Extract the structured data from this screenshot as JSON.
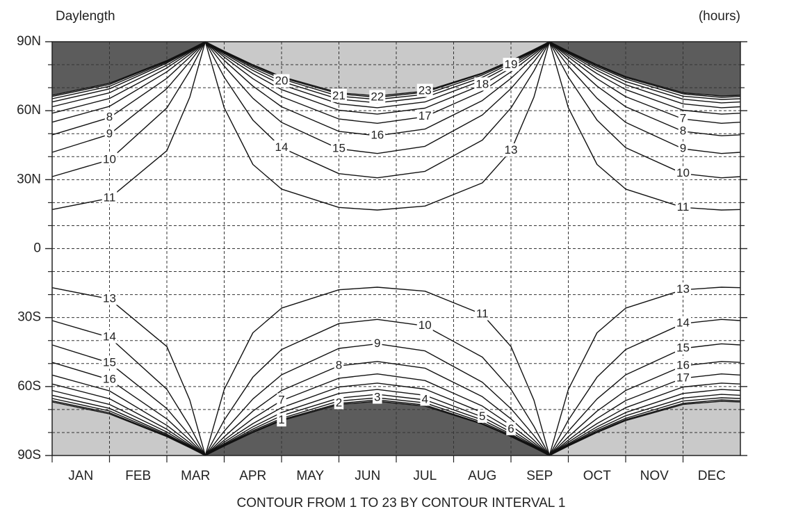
{
  "chart_data": {
    "type": "contour",
    "title": "Daylength",
    "unit_label": "(hours)",
    "footer": "CONTOUR FROM 1 TO 23 BY CONTOUR INTERVAL 1",
    "categories": [
      "JAN",
      "FEB",
      "MAR",
      "APR",
      "MAY",
      "JUN",
      "JUL",
      "AUG",
      "SEP",
      "OCT",
      "NOV",
      "DEC"
    ],
    "xlim": [
      0,
      12
    ],
    "ylim": [
      -90,
      90
    ],
    "yticks": [
      {
        "value": 90,
        "label": "90N"
      },
      {
        "value": 60,
        "label": "60N"
      },
      {
        "value": 30,
        "label": "30N"
      },
      0,
      {
        "value": -30,
        "label": "30S"
      },
      {
        "value": -60,
        "label": "60S"
      },
      {
        "value": -90,
        "label": "90S"
      }
    ],
    "y_minor_ticks": [
      80,
      70,
      50,
      40,
      20,
      10,
      -10,
      -20,
      -40,
      -50,
      -70,
      -80
    ],
    "grid": true,
    "line_color": "#111111",
    "x": [
      0,
      1,
      2,
      2.4,
      2.67,
      2.67,
      2.67,
      3,
      3.5,
      4,
      5,
      5.67,
      6.5,
      7.5,
      8,
      8.4,
      8.67,
      8.67,
      8.67,
      9,
      9.5,
      10,
      11,
      11.67,
      12
    ],
    "series": [
      {
        "name": "1",
        "fill": "#5c5c5c",
        "values": [
          66.7,
          71.9,
          81.8,
          86.6,
          90,
          null,
          -90,
          -85.9,
          -80,
          -74.8,
          -67.8,
          -66.4,
          -68.5,
          -76.4,
          -81.8,
          -86.6,
          -90,
          null,
          90,
          85.9,
          80,
          74.8,
          67.8,
          66.4,
          66.7
        ]
      },
      {
        "name": "2",
        "values": [
          66.2,
          71.4,
          81.6,
          86.5,
          90,
          null,
          -90,
          -85.8,
          -79.7,
          -74.4,
          -67.3,
          -65.8,
          -68,
          -76.1,
          -81.6,
          -86.5,
          -90,
          null,
          90,
          85.8,
          79.7,
          74.4,
          67.3,
          65.8,
          66.2
        ]
      },
      {
        "name": "3",
        "values": [
          65.2,
          70.6,
          81.2,
          86.4,
          90,
          null,
          -90,
          -85.6,
          -79.2,
          -73.8,
          -66.3,
          -64.9,
          -67.1,
          -75.5,
          -81.2,
          -86.4,
          -90,
          null,
          90,
          85.6,
          79.2,
          73.8,
          66.3,
          64.9,
          65.2
        ]
      },
      {
        "name": "4",
        "values": [
          63.8,
          69.5,
          80.7,
          86.1,
          90,
          null,
          -90,
          -85.3,
          -78.5,
          -72.7,
          -65,
          -63.4,
          -65.8,
          -74.5,
          -80.7,
          -86.1,
          -90,
          null,
          90,
          85.3,
          78.5,
          72.7,
          65,
          63.4,
          63.8
        ]
      },
      {
        "name": "5",
        "values": [
          61.7,
          67.8,
          79.8,
          85.8,
          90,
          null,
          -90,
          -84.9,
          -77.5,
          -71.3,
          -63,
          -61.3,
          -63.8,
          -73.2,
          -79.8,
          -85.8,
          -90,
          null,
          90,
          84.9,
          77.5,
          71.3,
          63,
          61.3,
          61.7
        ]
      },
      {
        "name": "6",
        "values": [
          58.9,
          65.3,
          78.6,
          85.3,
          90,
          null,
          -90,
          -84.2,
          -76.1,
          -69.2,
          -60.2,
          -58.5,
          -61.1,
          -71.3,
          -78.6,
          -85.3,
          -90,
          null,
          90,
          84.2,
          76.1,
          69.2,
          60.2,
          58.5,
          58.9
        ]
      },
      {
        "name": "7",
        "values": [
          55,
          61.9,
          76.9,
          84.5,
          90,
          null,
          -90,
          -83.3,
          -73.9,
          -66.1,
          -56.4,
          -54.5,
          -57.4,
          -68.5,
          -76.9,
          -84.5,
          -90,
          null,
          90,
          83.3,
          73.9,
          66.1,
          56.4,
          54.5,
          55
        ]
      },
      {
        "name": "8",
        "values": [
          49.5,
          57,
          74.1,
          83.3,
          90,
          null,
          -90,
          -81.9,
          -70.7,
          -61.7,
          -51,
          -49.1,
          -52,
          -64.4,
          -74.1,
          -83.3,
          -90,
          null,
          90,
          81.9,
          70.7,
          61.7,
          51,
          49.1,
          49.5
        ]
      },
      {
        "name": "9",
        "values": [
          41.9,
          49.7,
          69.6,
          81.3,
          90,
          null,
          -90,
          -79.4,
          -65.4,
          -54.9,
          -43.4,
          -41.4,
          -44.5,
          -58.1,
          -69.6,
          -81.3,
          -90,
          null,
          90,
          79.4,
          65.4,
          54.9,
          43.4,
          41.4,
          41.9
        ]
      },
      {
        "name": "10",
        "values": [
          31.3,
          38.6,
          61.2,
          77.3,
          90,
          null,
          -90,
          -74.6,
          -55.9,
          -43.9,
          -32.6,
          -30.8,
          -33.6,
          -47.2,
          -61.2,
          -77.3,
          -90,
          null,
          90,
          74.6,
          55.9,
          43.9,
          32.6,
          30.8,
          31.3
        ]
      },
      {
        "name": "11",
        "values": [
          17,
          21.9,
          42.6,
          65.9,
          90,
          null,
          -90,
          -61.3,
          -36.6,
          -25.9,
          -17.9,
          -16.8,
          -18.5,
          -28.6,
          -42.6,
          -65.9,
          -90,
          null,
          90,
          61.3,
          36.6,
          25.9,
          17.9,
          16.8,
          17
        ]
      },
      {
        "name": "13",
        "values": [
          -17,
          -21.9,
          -42.6,
          -65.9,
          -90,
          null,
          90,
          61.3,
          36.6,
          25.9,
          17.9,
          16.8,
          18.5,
          28.6,
          42.6,
          65.9,
          90,
          null,
          -90,
          -61.3,
          -36.6,
          -25.9,
          -17.9,
          -16.8,
          -17
        ]
      },
      {
        "name": "14",
        "values": [
          -31.3,
          -38.6,
          -61.2,
          -77.3,
          -90,
          null,
          90,
          74.6,
          55.9,
          43.9,
          32.6,
          30.8,
          33.6,
          47.2,
          61.2,
          77.3,
          90,
          null,
          -90,
          -74.6,
          -55.9,
          -43.9,
          -32.6,
          -30.8,
          -31.3
        ]
      },
      {
        "name": "15",
        "values": [
          -41.9,
          -49.7,
          -69.6,
          -81.3,
          -90,
          null,
          90,
          79.4,
          65.4,
          54.9,
          43.4,
          41.4,
          44.5,
          58.1,
          69.6,
          81.3,
          90,
          null,
          -90,
          -79.4,
          -65.4,
          -54.9,
          -43.4,
          -41.4,
          -41.9
        ]
      },
      {
        "name": "16",
        "values": [
          -49.5,
          -57,
          -74.1,
          -83.3,
          -90,
          null,
          90,
          81.9,
          70.7,
          61.7,
          51,
          49.1,
          52,
          64.4,
          74.1,
          83.3,
          90,
          null,
          -90,
          -81.9,
          -70.7,
          -61.7,
          -51,
          -49.1,
          -49.5
        ]
      },
      {
        "name": "17",
        "values": [
          -55,
          -61.9,
          -76.9,
          -84.5,
          -90,
          null,
          90,
          83.3,
          73.9,
          66.1,
          56.4,
          54.5,
          57.4,
          68.5,
          76.9,
          84.5,
          90,
          null,
          -90,
          -83.3,
          -73.9,
          -66.1,
          -56.4,
          -54.5,
          -55
        ]
      },
      {
        "name": "18",
        "values": [
          -58.9,
          -65.3,
          -78.6,
          -85.3,
          -90,
          null,
          90,
          84.2,
          76.1,
          69.2,
          60.2,
          58.5,
          61.1,
          71.3,
          78.6,
          85.3,
          90,
          null,
          -90,
          -84.2,
          -76.1,
          -69.2,
          -60.2,
          -58.5,
          -58.9
        ]
      },
      {
        "name": "19",
        "values": [
          -61.7,
          -67.8,
          -79.8,
          -85.8,
          -90,
          null,
          90,
          84.9,
          77.5,
          71.3,
          63,
          61.3,
          63.8,
          73.2,
          79.8,
          85.8,
          90,
          null,
          -90,
          -84.9,
          -77.5,
          -71.3,
          -63,
          -61.3,
          -61.7
        ]
      },
      {
        "name": "20",
        "values": [
          -63.8,
          -69.5,
          -80.7,
          -86.1,
          -90,
          null,
          90,
          85.3,
          78.5,
          72.7,
          65,
          63.4,
          65.8,
          74.5,
          80.7,
          86.1,
          90,
          null,
          -90,
          -85.3,
          -78.5,
          -72.7,
          -65,
          -63.4,
          -63.8
        ]
      },
      {
        "name": "21",
        "values": [
          -65.2,
          -70.6,
          -81.2,
          -86.4,
          -90,
          null,
          90,
          85.6,
          79.2,
          73.8,
          66.3,
          64.9,
          67.1,
          75.5,
          81.2,
          86.4,
          90,
          null,
          -90,
          -85.6,
          -79.2,
          -73.8,
          -66.3,
          -64.9,
          -65.2
        ]
      },
      {
        "name": "22",
        "values": [
          -66.2,
          -71.4,
          -81.6,
          -86.5,
          -90,
          null,
          90,
          85.8,
          79.7,
          74.4,
          67.3,
          65.8,
          68,
          76.1,
          81.6,
          86.5,
          90,
          null,
          -90,
          -85.8,
          -79.7,
          -74.4,
          -67.3,
          -65.8,
          -66.2
        ]
      },
      {
        "name": "23",
        "fill": "#c9c9c9",
        "values": [
          -66.7,
          -71.9,
          -81.8,
          -86.6,
          -90,
          null,
          90,
          85.9,
          80,
          74.8,
          67.8,
          66.4,
          68.5,
          76.4,
          81.8,
          86.6,
          90,
          null,
          -90,
          -85.9,
          -80,
          -74.8,
          -67.8,
          -66.4,
          -66.7
        ]
      }
    ]
  }
}
